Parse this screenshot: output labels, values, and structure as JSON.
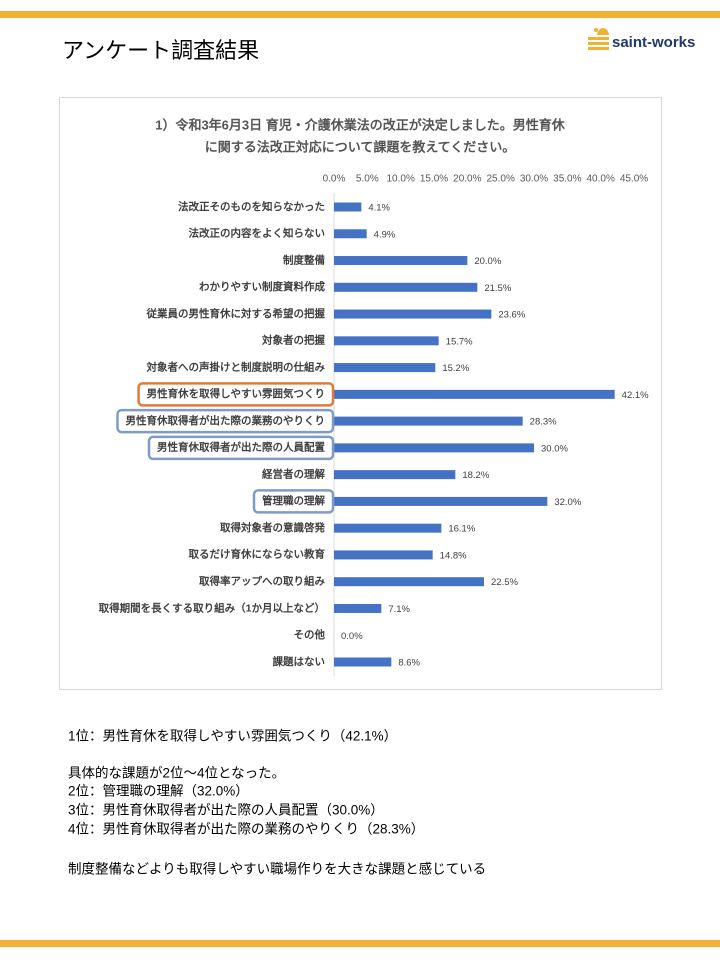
{
  "header": {
    "title": "アンケート調査結果",
    "logo": "saint-works"
  },
  "chart_data": {
    "type": "hbar",
    "title": [
      "1）令和3年6月3日 育児・介護休業法の改正が決定しました。男性育休",
      "に関する法改正対応について課題を教えてください。"
    ],
    "categories": [
      "法改正そのものを知らなかった",
      "法改正の内容をよく知らない",
      "制度整備",
      "わかりやすい制度資料作成",
      "従業員の男性育休に対する希望の把握",
      "対象者の把握",
      "対象者への声掛けと制度説明の仕組み",
      "男性育休を取得しやすい雰囲気つくり",
      "男性育休取得者が出た際の業務のやりくり",
      "男性育休取得者が出た際の人員配置",
      "経営者の理解",
      "管理職の理解",
      "取得対象者の意識啓発",
      "取るだけ育休にならない教育",
      "取得率アップへの取り組み",
      "取得期間を長くする取り組み（1か月以上など）",
      "その他",
      "課題はない"
    ],
    "values": [
      4.1,
      4.9,
      20.0,
      21.5,
      23.6,
      15.7,
      15.2,
      42.1,
      28.3,
      30.0,
      18.2,
      32.0,
      16.1,
      14.8,
      22.5,
      7.1,
      0.0,
      8.6
    ],
    "value_labels": [
      "4.1%",
      "4.9%",
      "20.0%",
      "21.5%",
      "23.6%",
      "15.7%",
      "15.2%",
      "42.1%",
      "28.3%",
      "30.0%",
      "18.2%",
      "32.0%",
      "16.1%",
      "14.8%",
      "22.5%",
      "7.1%",
      "0.0%",
      "8.6%"
    ],
    "color": "#4472c4",
    "xlim": [
      0,
      45
    ],
    "xticks": [
      {
        "value": 0,
        "label": "0.0%"
      },
      {
        "value": 5,
        "label": "5.0%"
      },
      {
        "value": 10,
        "label": "10.0%"
      },
      {
        "value": 15,
        "label": "15.0%"
      },
      {
        "value": 20,
        "label": "20.0%"
      },
      {
        "value": 25,
        "label": "25.0%"
      },
      {
        "value": 30,
        "label": "30.0%"
      },
      {
        "value": 35,
        "label": "35.0%"
      },
      {
        "value": 40,
        "label": "40.0%"
      },
      {
        "value": 45,
        "label": "45.0%"
      }
    ],
    "highlights": [
      {
        "index": 7,
        "color": "#e07b39"
      },
      {
        "index": 8,
        "color": "#7f9cc9"
      },
      {
        "index": 9,
        "color": "#7f9cc9"
      },
      {
        "index": 11,
        "color": "#7f9cc9"
      }
    ]
  },
  "summary": [
    "1位：男性育休を取得しやすい雰囲気つくり（42.1%）",
    "具体的な課題が2位～4位となった。",
    "2位：管理職の理解（32.0%）",
    "3位：男性育休取得者が出た際の人員配置（30.0%）",
    "4位：男性育休取得者が出た際の業務のやりくり（28.3%）",
    "制度整備などよりも取得しやすい職場作りを大きな課題と感じている"
  ]
}
